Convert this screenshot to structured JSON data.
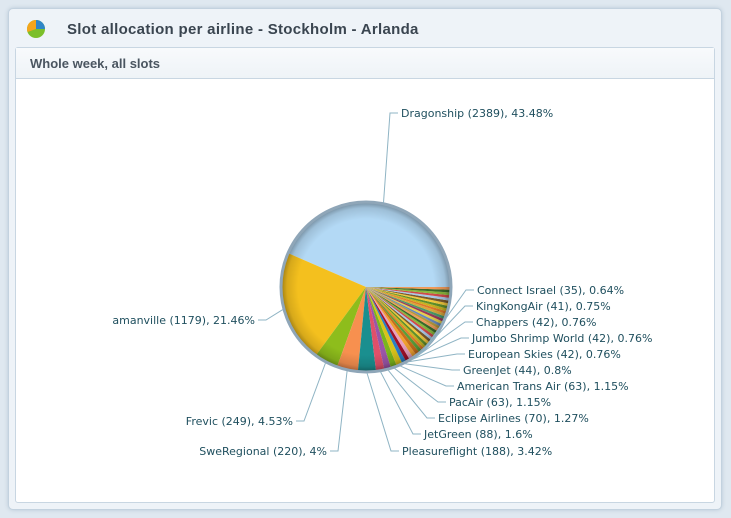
{
  "header": {
    "title": "Slot allocation per airline - Stockholm - Arlanda",
    "icon": "pie-chart-icon"
  },
  "panel": {
    "subtitle": "Whole week, all slots"
  },
  "chart_data": {
    "type": "pie",
    "title": "",
    "start": "east, counterclockwise",
    "slices": [
      {
        "name": "Dragonship",
        "value": 2389,
        "percent": 43.48,
        "label": "Dragonship (2389), 43.48%",
        "color": "#b3d9f5"
      },
      {
        "name": "amanville",
        "value": 1179,
        "percent": 21.46,
        "label": "amanville (1179), 21.46%",
        "color": "#f4c01e"
      },
      {
        "name": "Frevic",
        "value": 249,
        "percent": 4.53,
        "label": "Frevic (249), 4.53%",
        "color": "#8ebd1c"
      },
      {
        "name": "SweRegional",
        "value": 220,
        "percent": 4,
        "label": "SweRegional (220), 4%",
        "color": "#f7904f"
      },
      {
        "name": "Pleasureflight",
        "value": 188,
        "percent": 3.42,
        "label": "Pleasureflight (188), 3.42%",
        "color": "#1a8f8f"
      },
      {
        "name": "JetGreen",
        "value": 88,
        "percent": 1.6,
        "label": "JetGreen (88), 1.6%",
        "color": "#e0506a"
      },
      {
        "name": "Eclipse Airlines",
        "value": 70,
        "percent": 1.27,
        "label": "Eclipse Airlines (70), 1.27%",
        "color": "#9a55a8"
      },
      {
        "name": "PacAir",
        "value": 63,
        "percent": 1.15,
        "label": "PacAir (63), 1.15%",
        "color": "#7ab51d"
      },
      {
        "name": "American Trans Air",
        "value": 63,
        "percent": 1.15,
        "label": "American Trans Air (63), 1.15%",
        "color": "#d9c21a"
      },
      {
        "name": "GreenJet",
        "value": 44,
        "percent": 0.8,
        "label": "GreenJet (44), 0.8%",
        "color": "#2a7fc4"
      },
      {
        "name": "European Skies",
        "value": 42,
        "percent": 0.76,
        "label": "European Skies (42), 0.76%",
        "color": "#a0102a"
      },
      {
        "name": "Jumbo Shrimp World",
        "value": 42,
        "percent": 0.76,
        "label": "Jumbo Shrimp World (42), 0.76%",
        "color": "#e8a0c0"
      },
      {
        "name": "Chappers",
        "value": 42,
        "percent": 0.76,
        "label": "Chappers (42), 0.76%",
        "color": "#f0a030"
      },
      {
        "name": "KingKongAir",
        "value": 41,
        "percent": 0.75,
        "label": "KingKongAir (41), 0.75%",
        "color": "#c86e1a"
      },
      {
        "name": "Connect Israel",
        "value": 35,
        "percent": 0.64,
        "label": "Connect Israel (35), 0.64%",
        "color": "#5a9e3a"
      }
    ]
  }
}
